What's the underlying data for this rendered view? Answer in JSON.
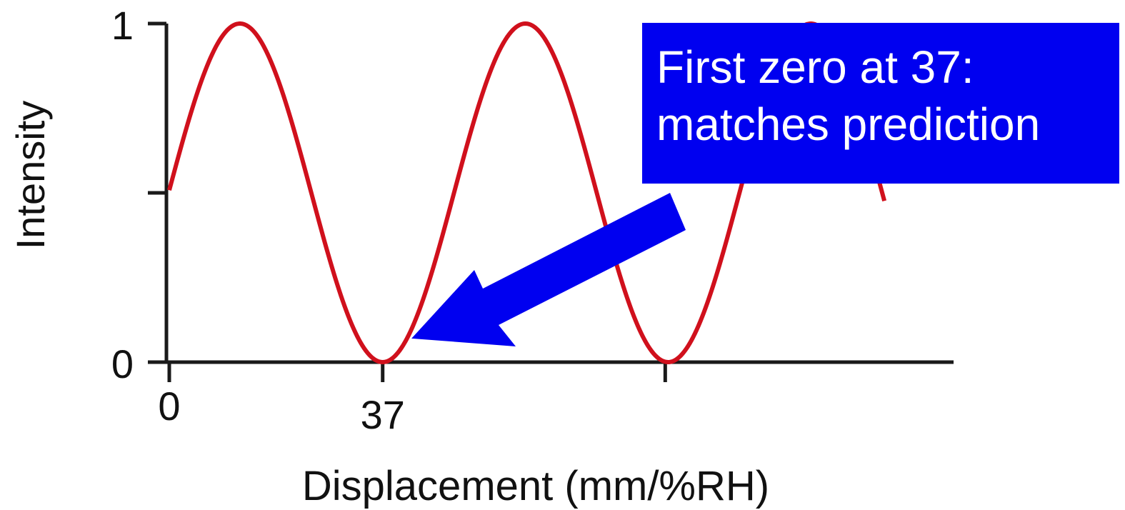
{
  "chart_data": {
    "type": "line",
    "title": "",
    "xlabel": "Displacement (mm/%RH)",
    "ylabel": "Intensity",
    "xlim": [
      0,
      136
    ],
    "ylim": [
      0,
      1
    ],
    "xticks": [
      {
        "value": 0,
        "label": "0"
      },
      {
        "value": 37,
        "label": "37"
      },
      {
        "value": 86,
        "label": ""
      }
    ],
    "yticks": [
      {
        "value": 0,
        "label": "0"
      },
      {
        "value": 0.5,
        "label": ""
      },
      {
        "value": 1,
        "label": "1"
      }
    ],
    "series": [
      {
        "function": "0.5 + 0.5*cos(2*pi*(x - 12.25)/49.5)",
        "x_range": [
          0,
          124
        ],
        "color": "#d0101c"
      }
    ],
    "zeros_at": [
      37,
      86
    ],
    "annotations": [
      {
        "text_lines": [
          "First zero at 37:",
          "matches prediction"
        ],
        "box_color": "#0000f0",
        "text_color": "#ffffff",
        "arrow_color": "#0000f0",
        "points_to": {
          "x": 42,
          "y": 0.07
        }
      }
    ],
    "grid": false,
    "legend": false
  }
}
